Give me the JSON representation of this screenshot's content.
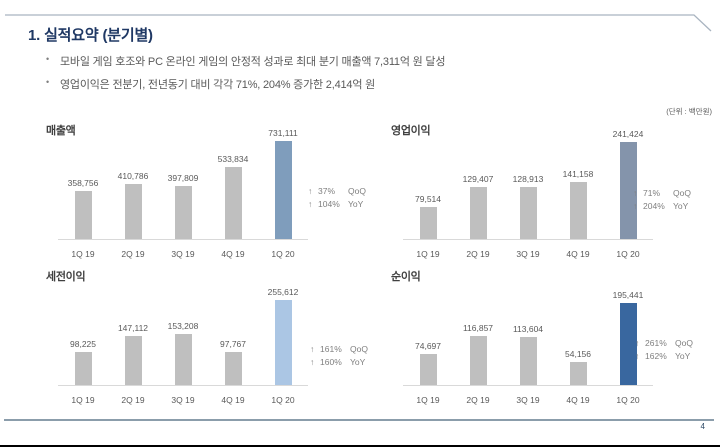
{
  "page": {
    "title": "1. 실적요약 (분기별)",
    "bullets": [
      "모바일 게임 호조와 PC 온라인 게임의 안정적 성과로 최대 분기 매출액 7,311억 원 달성",
      "영업이익은 전분기, 전년동기 대비 각각 71%, 204% 증가한 2,414억 원"
    ],
    "unit_label": "(단위 : 백만원)",
    "page_number": "4",
    "arrow_glyph": "↑"
  },
  "colors": {
    "title_navy": "#1f3864",
    "body_text": "#595959",
    "bar_default": "#bfbfbf",
    "baseline": "#d9d9d9",
    "annotation_text": "#7f7f7f"
  },
  "chart_data": [
    {
      "type": "bar",
      "title": "매출액",
      "categories": [
        "1Q 19",
        "2Q 19",
        "3Q 19",
        "4Q 19",
        "1Q 20"
      ],
      "values": [
        358756,
        410786,
        397809,
        533834,
        731111
      ],
      "value_labels": [
        "358,756",
        "410,786",
        "397,809",
        "533,834",
        "731,111"
      ],
      "highlight_index": 4,
      "highlight_color": "#7f9dbc",
      "ylim": [
        0,
        731111
      ],
      "annotations": [
        {
          "delta": "37%",
          "basis": "QoQ"
        },
        {
          "delta": "104%",
          "basis": "YoY"
        }
      ]
    },
    {
      "type": "bar",
      "title": "영업이익",
      "categories": [
        "1Q 19",
        "2Q 19",
        "3Q 19",
        "4Q 19",
        "1Q 20"
      ],
      "values": [
        79514,
        129407,
        128913,
        141158,
        241424
      ],
      "value_labels": [
        "79,514",
        "129,407",
        "128,913",
        "141,158",
        "241,424"
      ],
      "highlight_index": 4,
      "highlight_color": "#8494ab",
      "ylim": [
        0,
        241424
      ],
      "annotations": [
        {
          "delta": "71%",
          "basis": "QoQ"
        },
        {
          "delta": "204%",
          "basis": "YoY"
        }
      ]
    },
    {
      "type": "bar",
      "title": "세전이익",
      "categories": [
        "1Q 19",
        "2Q 19",
        "3Q 19",
        "4Q 19",
        "1Q 20"
      ],
      "values": [
        98225,
        147112,
        153208,
        97767,
        255612
      ],
      "value_labels": [
        "98,225",
        "147,112",
        "153,208",
        "97,767",
        "255,612"
      ],
      "highlight_index": 4,
      "highlight_color": "#abc6e4",
      "ylim": [
        0,
        255612
      ],
      "annotations": [
        {
          "delta": "161%",
          "basis": "QoQ"
        },
        {
          "delta": "160%",
          "basis": "YoY"
        }
      ]
    },
    {
      "type": "bar",
      "title": "순이익",
      "categories": [
        "1Q 19",
        "2Q 19",
        "3Q 19",
        "4Q 19",
        "1Q 20"
      ],
      "values": [
        74697,
        116857,
        113604,
        54156,
        195441
      ],
      "value_labels": [
        "74,697",
        "116,857",
        "113,604",
        "54,156",
        "195,441"
      ],
      "highlight_index": 4,
      "highlight_color": "#39679f",
      "ylim": [
        0,
        195441
      ],
      "annotations": [
        {
          "delta": "261%",
          "basis": "QoQ"
        },
        {
          "delta": "162%",
          "basis": "YoY"
        }
      ]
    }
  ]
}
